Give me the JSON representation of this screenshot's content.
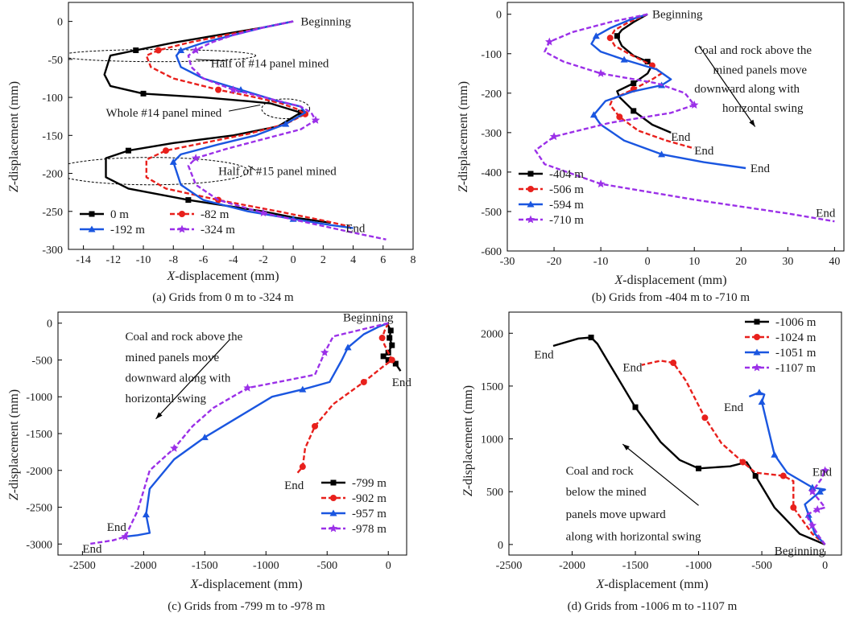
{
  "chart_data": [
    {
      "type": "line",
      "caption": "(a) Grids from 0 m to -324 m",
      "xlabel_italic": "X",
      "xlabel_rest": "-displacement (mm)",
      "ylabel_italic": "Z",
      "ylabel_rest": "-displacement (mm)",
      "xlim": [
        -15,
        8
      ],
      "ylim": [
        -300,
        25
      ],
      "xticks": [
        -14,
        -12,
        -10,
        -8,
        -6,
        -4,
        -2,
        0,
        2,
        4,
        6,
        8
      ],
      "yticks": [
        0,
        -50,
        -100,
        -150,
        -200,
        -250,
        -300
      ],
      "legend_position": "bottom-left",
      "legend_columns": 2,
      "series": [
        {
          "name": "0 m",
          "color": "#000000",
          "dash": "solid",
          "marker": "square",
          "x": [
            0,
            -2,
            -5,
            -8,
            -10.5,
            -12.2,
            -12.6,
            -12.2,
            -10,
            -6,
            -3,
            -1.5,
            0.5,
            -1,
            -4,
            -8,
            -11,
            -12.5,
            -12.5,
            -11,
            -7,
            -2,
            0,
            2.5
          ],
          "y": [
            0,
            -8,
            -18,
            -28,
            -38,
            -45,
            -70,
            -85,
            -95,
            -100,
            -105,
            -108,
            -120,
            -138,
            -150,
            -160,
            -170,
            -180,
            -205,
            -220,
            -235,
            -250,
            -258,
            -265
          ]
        },
        {
          "name": "-82 m",
          "color": "#e8201c",
          "dash": "dash",
          "marker": "circle",
          "x": [
            0,
            -2,
            -4.5,
            -7,
            -9,
            -9.8,
            -9.5,
            -8,
            -5,
            -2.5,
            -0.8,
            0.2,
            0.8,
            -0.5,
            -3,
            -6,
            -8.5,
            -9.8,
            -9.8,
            -8.5,
            -5,
            -1,
            2,
            3.8
          ],
          "y": [
            0,
            -8,
            -18,
            -28,
            -38,
            -45,
            -60,
            -75,
            -90,
            -100,
            -108,
            -115,
            -122,
            -135,
            -148,
            -160,
            -170,
            -182,
            -205,
            -220,
            -235,
            -250,
            -262,
            -270
          ]
        },
        {
          "name": "-192 m",
          "color": "#1a56e0",
          "dash": "solid",
          "marker": "triangle",
          "x": [
            0,
            -2,
            -4,
            -6,
            -7.5,
            -7.8,
            -7.5,
            -6,
            -3.5,
            -1,
            0.5,
            0.8,
            -0.5,
            -2.5,
            -5,
            -7.5,
            -8,
            -7.5,
            -6,
            -3,
            0,
            2.5,
            4
          ],
          "y": [
            0,
            -8,
            -18,
            -28,
            -38,
            -45,
            -60,
            -75,
            -90,
            -105,
            -112,
            -120,
            -135,
            -150,
            -162,
            -175,
            -185,
            -215,
            -235,
            -250,
            -260,
            -268,
            -272
          ]
        },
        {
          "name": "-324 m",
          "color": "#9b30e8",
          "dash": "dash",
          "marker": "star",
          "x": [
            0,
            -2,
            -4,
            -5.5,
            -6.5,
            -7,
            -6.8,
            -6,
            -4,
            -1.5,
            0.5,
            1.2,
            1.5,
            0.5,
            -2,
            -4.5,
            -6.5,
            -7,
            -6.5,
            -5,
            -2,
            1,
            4,
            6.2
          ],
          "y": [
            0,
            -8,
            -18,
            -28,
            -38,
            -45,
            -60,
            -75,
            -90,
            -102,
            -112,
            -120,
            -130,
            -142,
            -155,
            -168,
            -180,
            -190,
            -215,
            -235,
            -252,
            -265,
            -278,
            -287
          ]
        }
      ],
      "annotations": [
        {
          "text": "Beginning",
          "x": 0.5,
          "y": 0
        },
        {
          "text": "Half of #14 panel mined",
          "x": -5.5,
          "y": -55
        },
        {
          "text": "Whole #14 panel mined",
          "x": -12.5,
          "y": -120
        },
        {
          "text": "Half of #15 panel mined",
          "x": -5,
          "y": -197
        },
        {
          "text": "End",
          "x": 3.5,
          "y": -272
        }
      ]
    },
    {
      "type": "line",
      "caption": "(b) Grids from -404 m to -710 m",
      "xlabel_italic": "X",
      "xlabel_rest": "-displacement (mm)",
      "ylabel_italic": "Z",
      "ylabel_rest": "-displacement (mm)",
      "xlim": [
        -30,
        42
      ],
      "ylim": [
        -600,
        30
      ],
      "xticks": [
        -30,
        -20,
        -10,
        0,
        10,
        20,
        30,
        40
      ],
      "yticks": [
        0,
        -100,
        -200,
        -300,
        -400,
        -500,
        -600
      ],
      "legend_position": "bottom-left",
      "legend_columns": 1,
      "series": [
        {
          "name": "-404 m",
          "color": "#000000",
          "dash": "solid",
          "marker": "square",
          "x": [
            0,
            -3,
            -5.5,
            -6.5,
            -5.5,
            -3,
            0,
            1,
            0,
            -3,
            -6.5,
            -6,
            -3,
            1,
            5
          ],
          "y": [
            0,
            -20,
            -40,
            -55,
            -80,
            -105,
            -120,
            -128,
            -150,
            -175,
            -195,
            -210,
            -245,
            -280,
            -300
          ]
        },
        {
          "name": "-506 m",
          "color": "#e8201c",
          "dash": "dash",
          "marker": "circle",
          "x": [
            0,
            -4,
            -7,
            -8,
            -7,
            -4,
            1,
            3,
            1,
            -3,
            -7.5,
            -8,
            -6,
            -2,
            4,
            10
          ],
          "y": [
            0,
            -20,
            -40,
            -60,
            -80,
            -100,
            -130,
            -150,
            -165,
            -190,
            -215,
            -230,
            -260,
            -295,
            -320,
            -340
          ]
        },
        {
          "name": "-594 m",
          "color": "#1a56e0",
          "dash": "solid",
          "marker": "triangle",
          "x": [
            0,
            -4,
            -8,
            -11,
            -12,
            -10,
            -5,
            2,
            5,
            3,
            -3,
            -9,
            -11.5,
            -10,
            -5,
            3,
            12,
            21
          ],
          "y": [
            0,
            -15,
            -35,
            -55,
            -75,
            -95,
            -115,
            -140,
            -165,
            -180,
            -195,
            -220,
            -255,
            -280,
            -320,
            -355,
            -375,
            -390
          ]
        },
        {
          "name": "-710 m",
          "color": "#9b30e8",
          "dash": "dash",
          "marker": "star",
          "x": [
            0,
            -8,
            -16,
            -21,
            -22,
            -18,
            -10,
            2,
            8,
            10,
            5,
            -8,
            -20,
            -24,
            -22,
            -10,
            10,
            30,
            40
          ],
          "y": [
            0,
            -20,
            -45,
            -70,
            -95,
            -120,
            -150,
            -175,
            -200,
            -230,
            -250,
            -275,
            -310,
            -345,
            -380,
            -430,
            -470,
            -505,
            -525
          ]
        }
      ],
      "annotations": [
        {
          "text": "Beginning",
          "x": 1,
          "y": 0
        },
        {
          "text": "Coal and rock above the",
          "x": 10,
          "y": -90
        },
        {
          "text": "mined panels move",
          "x": 14,
          "y": -140
        },
        {
          "text": "downward along with",
          "x": 10,
          "y": -188
        },
        {
          "text": "horizontal swing",
          "x": 16,
          "y": -237
        },
        {
          "text": "End",
          "x": 5,
          "y": -310
        },
        {
          "text": "End",
          "x": 10,
          "y": -345
        },
        {
          "text": "End",
          "x": 22,
          "y": -390
        },
        {
          "text": "End",
          "x": 36,
          "y": -503
        }
      ]
    },
    {
      "type": "line",
      "caption": "(c) Grids from -799 m to -978 m",
      "xlabel_italic": "X",
      "xlabel_rest": "-displacement (mm)",
      "ylabel_italic": "Z",
      "ylabel_rest": "-displacement (mm)",
      "xlim": [
        -2700,
        150
      ],
      "ylim": [
        -3150,
        150
      ],
      "xticks": [
        -2500,
        -2000,
        -1500,
        -1000,
        -500,
        0
      ],
      "yticks": [
        0,
        -500,
        -1000,
        -1500,
        -2000,
        -2500,
        -3000
      ],
      "legend_position": "bottom-right",
      "legend_columns": 1,
      "series": [
        {
          "name": "-799 m",
          "color": "#000000",
          "dash": "solid",
          "marker": "square",
          "x": [
            -10,
            20,
            10,
            30,
            0,
            -40,
            0,
            60,
            100
          ],
          "y": [
            0,
            -100,
            -200,
            -300,
            -400,
            -450,
            -500,
            -550,
            -650
          ]
        },
        {
          "name": "-902 m",
          "color": "#e8201c",
          "dash": "dash",
          "marker": "circle",
          "x": [
            0,
            -30,
            -50,
            -30,
            30,
            -50,
            -200,
            -450,
            -600,
            -680,
            -700,
            -750
          ],
          "y": [
            0,
            -100,
            -200,
            -300,
            -500,
            -600,
            -800,
            -1100,
            -1400,
            -1700,
            -1950,
            -2050
          ]
        },
        {
          "name": "-957 m",
          "color": "#1a56e0",
          "dash": "solid",
          "marker": "triangle",
          "x": [
            0,
            -80,
            -200,
            -330,
            -380,
            -480,
            -700,
            -950,
            -1250,
            -1500,
            -1750,
            -1950,
            -1980,
            -1950,
            -2050,
            -2150
          ],
          "y": [
            0,
            -50,
            -150,
            -330,
            -500,
            -800,
            -900,
            -1000,
            -1300,
            -1550,
            -1850,
            -2250,
            -2600,
            -2850,
            -2880,
            -2900
          ]
        },
        {
          "name": "-978 m",
          "color": "#9b30e8",
          "dash": "dash",
          "marker": "star",
          "x": [
            0,
            -200,
            -450,
            -520,
            -600,
            -900,
            -1150,
            -1430,
            -1600,
            -1750,
            -1950,
            -2050,
            -2150,
            -2250,
            -2450
          ],
          "y": [
            0,
            -80,
            -180,
            -400,
            -700,
            -800,
            -880,
            -1150,
            -1400,
            -1700,
            -2000,
            -2550,
            -2900,
            -2950,
            -3000
          ]
        }
      ],
      "annotations": [
        {
          "text": "Beginning",
          "x": -370,
          "y": 80
        },
        {
          "text": "Coal and rock above the",
          "x": -2150,
          "y": -180
        },
        {
          "text": "mined panels move",
          "x": -2150,
          "y": -460
        },
        {
          "text": "downward along with",
          "x": -2150,
          "y": -740
        },
        {
          "text": "horizontal swing",
          "x": -2150,
          "y": -1020
        },
        {
          "text": "End",
          "x": 30,
          "y": -800
        },
        {
          "text": "End",
          "x": -850,
          "y": -2200
        },
        {
          "text": "End",
          "x": -2300,
          "y": -2770
        },
        {
          "text": "End",
          "x": -2500,
          "y": -3060
        }
      ]
    },
    {
      "type": "line",
      "caption": "(d) Grids from -1006 m to -1107 m",
      "xlabel_italic": "X",
      "xlabel_rest": "-displacement (mm)",
      "ylabel_italic": "Z",
      "ylabel_rest": "-displacement (mm)",
      "xlim": [
        -2500,
        130
      ],
      "ylim": [
        -100,
        2200
      ],
      "xticks": [
        -2500,
        -2000,
        -1500,
        -1000,
        -500,
        0
      ],
      "yticks": [
        0,
        500,
        1000,
        1500,
        2000
      ],
      "legend_position": "top-right",
      "legend_columns": 1,
      "series": [
        {
          "name": "-1006 m",
          "color": "#000000",
          "dash": "solid",
          "marker": "square",
          "x": [
            0,
            -200,
            -400,
            -550,
            -620,
            -750,
            -1000,
            -1150,
            -1300,
            -1500,
            -1700,
            -1800,
            -1850,
            -1950,
            -2150
          ],
          "y": [
            0,
            100,
            350,
            650,
            780,
            740,
            720,
            800,
            970,
            1300,
            1700,
            1900,
            1960,
            1950,
            1880
          ]
        },
        {
          "name": "-1024 m",
          "color": "#e8201c",
          "dash": "dash",
          "marker": "circle",
          "x": [
            0,
            -100,
            -250,
            -250,
            -330,
            -550,
            -650,
            -820,
            -950,
            -1100,
            -1200,
            -1300,
            -1450
          ],
          "y": [
            0,
            100,
            350,
            600,
            650,
            680,
            780,
            960,
            1200,
            1550,
            1720,
            1740,
            1700
          ]
        },
        {
          "name": "-1051 m",
          "color": "#1a56e0",
          "dash": "solid",
          "marker": "triangle",
          "x": [
            0,
            -80,
            -130,
            -160,
            -40,
            0,
            -100,
            -300,
            -400,
            -450,
            -500,
            -480,
            -520,
            -600
          ],
          "y": [
            0,
            100,
            280,
            380,
            500,
            520,
            540,
            680,
            850,
            1100,
            1350,
            1420,
            1440,
            1400
          ]
        },
        {
          "name": "-1107 m",
          "color": "#9b30e8",
          "dash": "dash",
          "marker": "star",
          "x": [
            0,
            -50,
            -100,
            -150,
            -60,
            0,
            -100,
            -30,
            0,
            10
          ],
          "y": [
            0,
            80,
            180,
            280,
            330,
            350,
            500,
            620,
            700,
            720
          ]
        }
      ],
      "annotations": [
        {
          "text": "Beginning",
          "x": -400,
          "y": -60
        },
        {
          "text": "Coal and rock",
          "x": -2050,
          "y": 700
        },
        {
          "text": "below the mined",
          "x": -2050,
          "y": 500
        },
        {
          "text": "panels move upward",
          "x": -2050,
          "y": 290
        },
        {
          "text": "along with horizontal swing",
          "x": -2050,
          "y": 80
        },
        {
          "text": "End",
          "x": -2300,
          "y": 1800
        },
        {
          "text": "End",
          "x": -1600,
          "y": 1680
        },
        {
          "text": "End",
          "x": -800,
          "y": 1300
        },
        {
          "text": "End",
          "x": -100,
          "y": 690
        }
      ]
    }
  ]
}
